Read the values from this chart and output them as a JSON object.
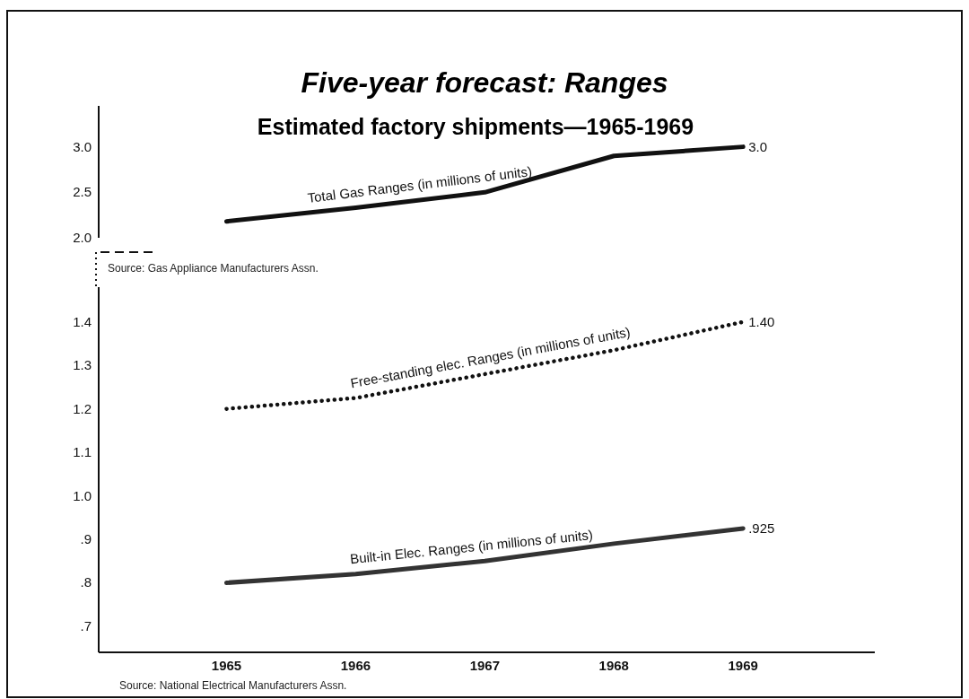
{
  "chart_data": [
    {
      "type": "line",
      "title": "Five-year forecast: Ranges",
      "subtitle": "Estimated factory shipments—1965-1969",
      "categories": [
        "1965",
        "1966",
        "1967",
        "1968",
        "1969"
      ],
      "series": [
        {
          "name": "Total Gas Ranges (in millions of units)",
          "color": "#111111",
          "line_style": "solid",
          "values": [
            2.18,
            2.33,
            2.5,
            2.9,
            3.0
          ],
          "value_labels": [
            null,
            null,
            null,
            null,
            "3.0"
          ]
        }
      ],
      "ylim": [
        2.0,
        3.45
      ],
      "yticks": [
        {
          "value": 2.0,
          "label": "2.0"
        },
        2.5,
        {
          "value": 3.0,
          "label": "3.0"
        }
      ],
      "tick_labels": "y",
      "marker": "none",
      "grid": false,
      "annotations": [
        "Source: Gas Appliance Manufacturers Assn."
      ]
    },
    {
      "type": "line",
      "categories": [
        "1965",
        "1966",
        "1967",
        "1968",
        "1969"
      ],
      "series": [
        {
          "name": "Free-standing elec. Ranges (in millions of units)",
          "color": "#111111",
          "line_style": "dotted",
          "values": [
            1.2,
            1.225,
            1.28,
            1.335,
            1.4
          ],
          "value_labels": [
            null,
            null,
            null,
            null,
            "1.40"
          ]
        },
        {
          "name": "Built-in Elec. Ranges (in millions of units)",
          "color": "#333333",
          "line_style": "solid",
          "values": [
            0.8,
            0.82,
            0.85,
            0.89,
            0.925
          ],
          "value_labels": [
            null,
            null,
            null,
            null,
            ".925"
          ]
        }
      ],
      "ylim": [
        0.64,
        1.48
      ],
      "yticks": [
        {
          "value": 0.7,
          "label": ".7"
        },
        {
          "value": 0.8,
          "label": ".8"
        },
        {
          "value": 0.9,
          "label": ".9"
        },
        {
          "value": 1.0,
          "label": "1.0"
        },
        1.1,
        1.2,
        1.3,
        1.4
      ],
      "marker": "none",
      "grid": false,
      "annotations": [
        "Source: National Electrical Manufacturers Assn."
      ]
    }
  ]
}
